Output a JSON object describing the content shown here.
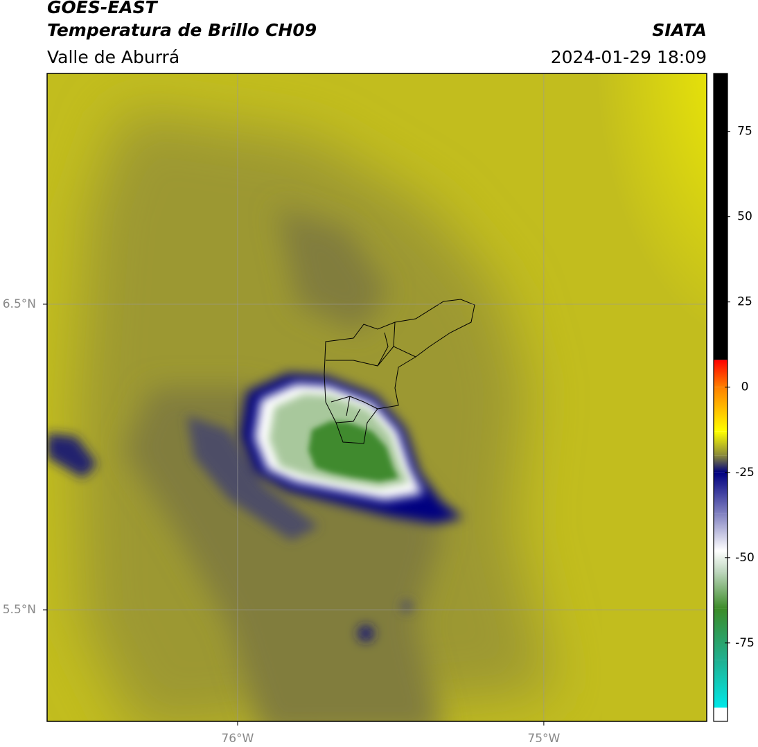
{
  "header": {
    "title": "GOES-EAST",
    "subtitle": "Temperatura de Brillo CH09",
    "region": "Valle de Aburrá",
    "source": "SIATA",
    "datetime": "2024-01-29 18:09"
  },
  "map": {
    "xlim": [
      -76.622,
      -74.468
    ],
    "ylim": [
      5.135,
      7.255
    ],
    "xticks": [
      {
        "value": -76,
        "label": "76°W"
      },
      {
        "value": -75,
        "label": "75°W"
      }
    ],
    "yticks": [
      {
        "value": 6.5,
        "label": "6.5°N"
      },
      {
        "value": 5.5,
        "label": "5.5°N"
      }
    ],
    "grid": true
  },
  "colorbar": {
    "lim": [
      -98,
      92
    ],
    "ticks": [
      75,
      50,
      25,
      0,
      -25,
      -50,
      -75
    ],
    "stops": [
      {
        "value": 92,
        "color": "#000000"
      },
      {
        "value": 8,
        "color": "#000000"
      },
      {
        "value": 8,
        "color": "#ff0000"
      },
      {
        "value": 0,
        "color": "#ff8000"
      },
      {
        "value": -13,
        "color": "#ffff00"
      },
      {
        "value": -20,
        "color": "#8a8a3a"
      },
      {
        "value": -25,
        "color": "#000080"
      },
      {
        "value": -37,
        "color": "#8080c0"
      },
      {
        "value": -48,
        "color": "#ffffff"
      },
      {
        "value": -54,
        "color": "#c0d8c0"
      },
      {
        "value": -65,
        "color": "#3c8c28"
      },
      {
        "value": -80,
        "color": "#20b090"
      },
      {
        "value": -94,
        "color": "#00e8e8"
      },
      {
        "value": -94,
        "color": "#ffffff"
      },
      {
        "value": -98,
        "color": "#ffffff"
      }
    ]
  }
}
